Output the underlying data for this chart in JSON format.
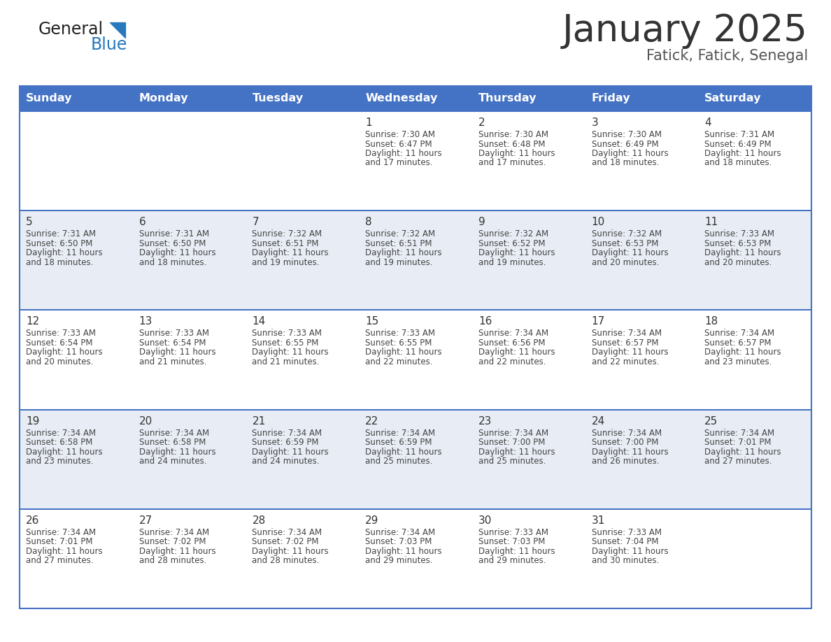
{
  "title": "January 2025",
  "subtitle": "Fatick, Fatick, Senegal",
  "days_of_week": [
    "Sunday",
    "Monday",
    "Tuesday",
    "Wednesday",
    "Thursday",
    "Friday",
    "Saturday"
  ],
  "header_bg": "#4472C4",
  "header_text": "#FFFFFF",
  "cell_bg_even": "#FFFFFF",
  "cell_bg_odd": "#E8EDF5",
  "border_color": "#4472C4",
  "title_color": "#333333",
  "subtitle_color": "#555555",
  "day_number_color": "#333333",
  "info_color": "#444444",
  "logo_general_color": "#222222",
  "logo_blue_color": "#2878BE",
  "calendar_data": [
    [
      {
        "day": "",
        "sunrise": "",
        "sunset": "",
        "daylight": ""
      },
      {
        "day": "",
        "sunrise": "",
        "sunset": "",
        "daylight": ""
      },
      {
        "day": "",
        "sunrise": "",
        "sunset": "",
        "daylight": ""
      },
      {
        "day": "1",
        "sunrise": "7:30 AM",
        "sunset": "6:47 PM",
        "daylight": "11 hours and 17 minutes."
      },
      {
        "day": "2",
        "sunrise": "7:30 AM",
        "sunset": "6:48 PM",
        "daylight": "11 hours and 17 minutes."
      },
      {
        "day": "3",
        "sunrise": "7:30 AM",
        "sunset": "6:49 PM",
        "daylight": "11 hours and 18 minutes."
      },
      {
        "day": "4",
        "sunrise": "7:31 AM",
        "sunset": "6:49 PM",
        "daylight": "11 hours and 18 minutes."
      }
    ],
    [
      {
        "day": "5",
        "sunrise": "7:31 AM",
        "sunset": "6:50 PM",
        "daylight": "11 hours and 18 minutes."
      },
      {
        "day": "6",
        "sunrise": "7:31 AM",
        "sunset": "6:50 PM",
        "daylight": "11 hours and 18 minutes."
      },
      {
        "day": "7",
        "sunrise": "7:32 AM",
        "sunset": "6:51 PM",
        "daylight": "11 hours and 19 minutes."
      },
      {
        "day": "8",
        "sunrise": "7:32 AM",
        "sunset": "6:51 PM",
        "daylight": "11 hours and 19 minutes."
      },
      {
        "day": "9",
        "sunrise": "7:32 AM",
        "sunset": "6:52 PM",
        "daylight": "11 hours and 19 minutes."
      },
      {
        "day": "10",
        "sunrise": "7:32 AM",
        "sunset": "6:53 PM",
        "daylight": "11 hours and 20 minutes."
      },
      {
        "day": "11",
        "sunrise": "7:33 AM",
        "sunset": "6:53 PM",
        "daylight": "11 hours and 20 minutes."
      }
    ],
    [
      {
        "day": "12",
        "sunrise": "7:33 AM",
        "sunset": "6:54 PM",
        "daylight": "11 hours and 20 minutes."
      },
      {
        "day": "13",
        "sunrise": "7:33 AM",
        "sunset": "6:54 PM",
        "daylight": "11 hours and 21 minutes."
      },
      {
        "day": "14",
        "sunrise": "7:33 AM",
        "sunset": "6:55 PM",
        "daylight": "11 hours and 21 minutes."
      },
      {
        "day": "15",
        "sunrise": "7:33 AM",
        "sunset": "6:55 PM",
        "daylight": "11 hours and 22 minutes."
      },
      {
        "day": "16",
        "sunrise": "7:34 AM",
        "sunset": "6:56 PM",
        "daylight": "11 hours and 22 minutes."
      },
      {
        "day": "17",
        "sunrise": "7:34 AM",
        "sunset": "6:57 PM",
        "daylight": "11 hours and 22 minutes."
      },
      {
        "day": "18",
        "sunrise": "7:34 AM",
        "sunset": "6:57 PM",
        "daylight": "11 hours and 23 minutes."
      }
    ],
    [
      {
        "day": "19",
        "sunrise": "7:34 AM",
        "sunset": "6:58 PM",
        "daylight": "11 hours and 23 minutes."
      },
      {
        "day": "20",
        "sunrise": "7:34 AM",
        "sunset": "6:58 PM",
        "daylight": "11 hours and 24 minutes."
      },
      {
        "day": "21",
        "sunrise": "7:34 AM",
        "sunset": "6:59 PM",
        "daylight": "11 hours and 24 minutes."
      },
      {
        "day": "22",
        "sunrise": "7:34 AM",
        "sunset": "6:59 PM",
        "daylight": "11 hours and 25 minutes."
      },
      {
        "day": "23",
        "sunrise": "7:34 AM",
        "sunset": "7:00 PM",
        "daylight": "11 hours and 25 minutes."
      },
      {
        "day": "24",
        "sunrise": "7:34 AM",
        "sunset": "7:00 PM",
        "daylight": "11 hours and 26 minutes."
      },
      {
        "day": "25",
        "sunrise": "7:34 AM",
        "sunset": "7:01 PM",
        "daylight": "11 hours and 27 minutes."
      }
    ],
    [
      {
        "day": "26",
        "sunrise": "7:34 AM",
        "sunset": "7:01 PM",
        "daylight": "11 hours and 27 minutes."
      },
      {
        "day": "27",
        "sunrise": "7:34 AM",
        "sunset": "7:02 PM",
        "daylight": "11 hours and 28 minutes."
      },
      {
        "day": "28",
        "sunrise": "7:34 AM",
        "sunset": "7:02 PM",
        "daylight": "11 hours and 28 minutes."
      },
      {
        "day": "29",
        "sunrise": "7:34 AM",
        "sunset": "7:03 PM",
        "daylight": "11 hours and 29 minutes."
      },
      {
        "day": "30",
        "sunrise": "7:33 AM",
        "sunset": "7:03 PM",
        "daylight": "11 hours and 29 minutes."
      },
      {
        "day": "31",
        "sunrise": "7:33 AM",
        "sunset": "7:04 PM",
        "daylight": "11 hours and 30 minutes."
      },
      {
        "day": "",
        "sunrise": "",
        "sunset": "",
        "daylight": ""
      }
    ]
  ]
}
